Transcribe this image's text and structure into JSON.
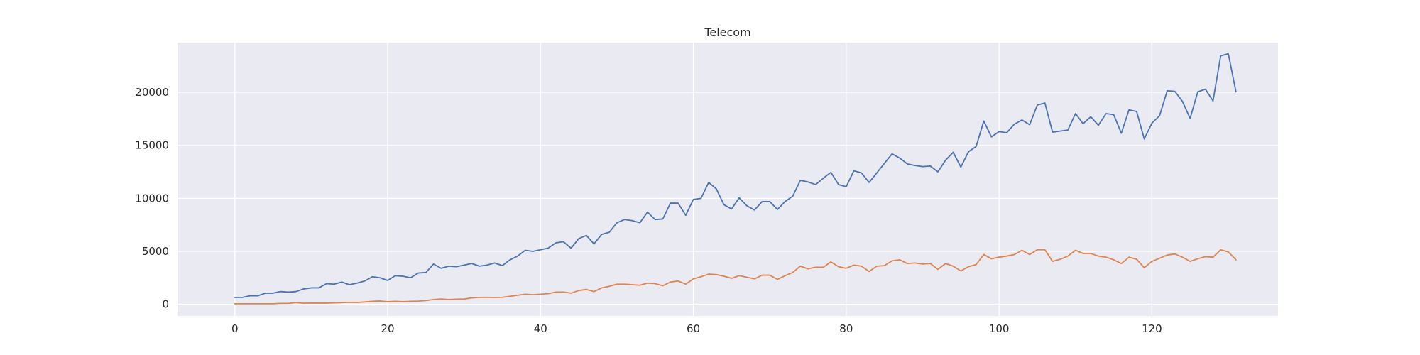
{
  "chart_data": {
    "type": "line",
    "title": "Telecom",
    "xlabel": "",
    "ylabel": "",
    "xlim": [
      -7.5,
      136.5
    ],
    "ylim": [
      -1100,
      24700
    ],
    "xticks": [
      0,
      20,
      40,
      60,
      80,
      100,
      120
    ],
    "yticks": [
      0,
      5000,
      10000,
      15000,
      20000
    ],
    "grid": true,
    "legend": "none",
    "colors": {
      "plot_background": "#eaeaf2",
      "grid": "#ffffff",
      "text": "#262626"
    },
    "series": [
      {
        "color": "#4c72b0",
        "x": [
          0,
          1,
          2,
          3,
          4,
          5,
          6,
          7,
          8,
          9,
          10,
          11,
          12,
          13,
          14,
          15,
          16,
          17,
          18,
          19,
          20,
          21,
          22,
          23,
          24,
          25,
          26,
          27,
          28,
          29,
          30,
          31,
          32,
          33,
          34,
          35,
          36,
          37,
          38,
          39,
          40,
          41,
          42,
          43,
          44,
          45,
          46,
          47,
          48,
          49,
          50,
          51,
          52,
          53,
          54,
          55,
          56,
          57,
          58,
          59,
          60,
          61,
          62,
          63,
          64,
          65,
          66,
          67,
          68,
          69,
          70,
          71,
          72,
          73,
          74,
          75,
          76,
          77,
          78,
          79,
          80,
          81,
          82,
          83,
          84,
          85,
          86,
          87,
          88,
          89,
          90,
          91,
          92,
          93,
          94,
          95,
          96,
          97,
          98,
          99,
          100,
          101,
          102,
          103,
          104,
          105,
          106,
          107,
          108,
          109,
          110,
          111,
          112,
          113,
          114,
          115,
          116,
          117,
          118,
          119,
          120,
          121,
          122,
          123,
          124,
          125,
          126,
          127,
          128,
          129,
          130,
          131
        ],
        "values": [
          650,
          650,
          800,
          800,
          1050,
          1050,
          1200,
          1150,
          1200,
          1450,
          1550,
          1550,
          1950,
          1900,
          2100,
          1850,
          2000,
          2200,
          2600,
          2500,
          2250,
          2700,
          2650,
          2500,
          2950,
          3000,
          3800,
          3400,
          3600,
          3550,
          3700,
          3850,
          3600,
          3700,
          3900,
          3650,
          4200,
          4550,
          5100,
          5000,
          5150,
          5300,
          5800,
          5900,
          5300,
          6200,
          6500,
          5700,
          6600,
          6800,
          7700,
          8000,
          7900,
          7700,
          8700,
          8000,
          8050,
          9550,
          9550,
          8400,
          9900,
          10000,
          11500,
          10900,
          9400,
          9000,
          10050,
          9300,
          8900,
          9700,
          9700,
          8950,
          9700,
          10200,
          11700,
          11550,
          11300,
          11900,
          12450,
          11300,
          11100,
          12600,
          12400,
          11500,
          12400,
          13300,
          14200,
          13800,
          13250,
          13100,
          13000,
          13050,
          12500,
          13600,
          14350,
          12950,
          14400,
          14900,
          17300,
          15800,
          16300,
          16200,
          17000,
          17400,
          16950,
          18800,
          19000,
          16250,
          16350,
          16450,
          18000,
          17050,
          17700,
          16900,
          18000,
          17900,
          16150,
          18350,
          18200,
          15600,
          17100,
          17800,
          20150,
          20100,
          19150,
          17550,
          20050,
          20300,
          19200,
          23450,
          23650,
          20050
        ]
      },
      {
        "color": "#dd8452",
        "x": [
          0,
          1,
          2,
          3,
          4,
          5,
          6,
          7,
          8,
          9,
          10,
          11,
          12,
          13,
          14,
          15,
          16,
          17,
          18,
          19,
          20,
          21,
          22,
          23,
          24,
          25,
          26,
          27,
          28,
          29,
          30,
          31,
          32,
          33,
          34,
          35,
          36,
          37,
          38,
          39,
          40,
          41,
          42,
          43,
          44,
          45,
          46,
          47,
          48,
          49,
          50,
          51,
          52,
          53,
          54,
          55,
          56,
          57,
          58,
          59,
          60,
          61,
          62,
          63,
          64,
          65,
          66,
          67,
          68,
          69,
          70,
          71,
          72,
          73,
          74,
          75,
          76,
          77,
          78,
          79,
          80,
          81,
          82,
          83,
          84,
          85,
          86,
          87,
          88,
          89,
          90,
          91,
          92,
          93,
          94,
          95,
          96,
          97,
          98,
          99,
          100,
          101,
          102,
          103,
          104,
          105,
          106,
          107,
          108,
          109,
          110,
          111,
          112,
          113,
          114,
          115,
          116,
          117,
          118,
          119,
          120,
          121,
          122,
          123,
          124,
          125,
          126,
          127,
          128,
          129,
          130,
          131
        ],
        "values": [
          50,
          50,
          50,
          50,
          50,
          50,
          80,
          80,
          160,
          100,
          120,
          110,
          110,
          130,
          160,
          180,
          170,
          220,
          280,
          310,
          250,
          280,
          250,
          280,
          300,
          350,
          450,
          500,
          450,
          480,
          500,
          600,
          650,
          660,
          640,
          660,
          750,
          850,
          950,
          900,
          950,
          1000,
          1150,
          1150,
          1050,
          1300,
          1400,
          1200,
          1550,
          1700,
          1900,
          1900,
          1850,
          1800,
          2000,
          1950,
          1750,
          2100,
          2200,
          1900,
          2400,
          2600,
          2850,
          2800,
          2650,
          2450,
          2700,
          2550,
          2400,
          2750,
          2750,
          2350,
          2700,
          3000,
          3600,
          3350,
          3500,
          3500,
          4000,
          3550,
          3400,
          3700,
          3600,
          3100,
          3600,
          3650,
          4100,
          4200,
          3850,
          3900,
          3800,
          3850,
          3300,
          3850,
          3600,
          3150,
          3550,
          3750,
          4700,
          4300,
          4450,
          4550,
          4700,
          5100,
          4700,
          5150,
          5150,
          4050,
          4250,
          4550,
          5100,
          4800,
          4800,
          4550,
          4450,
          4200,
          3850,
          4450,
          4250,
          3450,
          4050,
          4350,
          4650,
          4750,
          4450,
          4050,
          4300,
          4500,
          4450,
          5150,
          4950,
          4200
        ]
      }
    ]
  }
}
